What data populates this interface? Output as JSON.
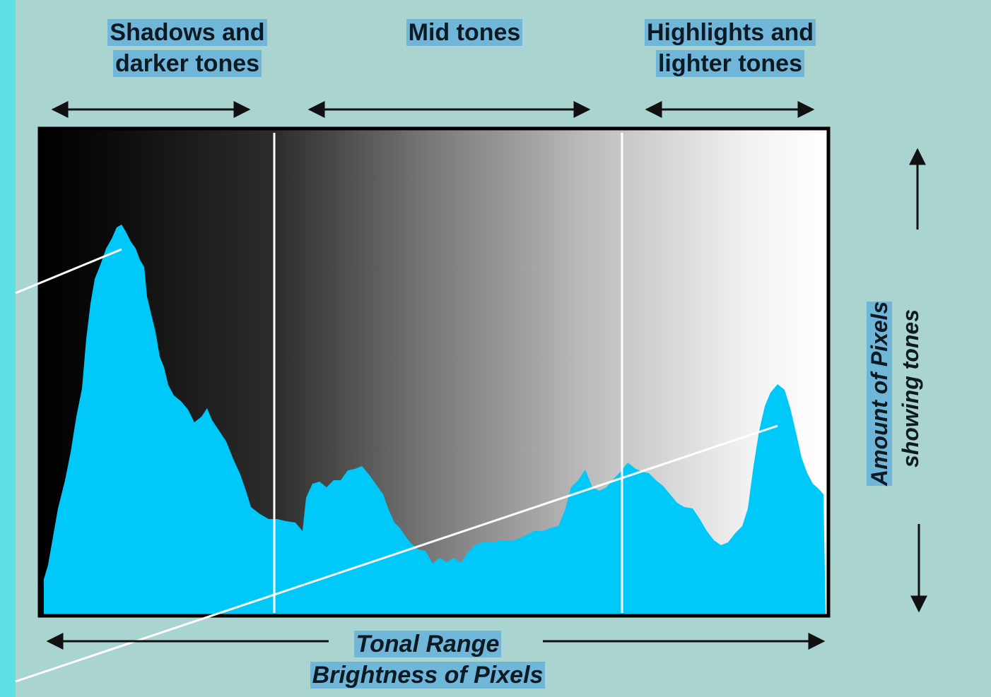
{
  "regions": {
    "shadows": {
      "line1": "Shadows and",
      "line2": "darker tones"
    },
    "midtones": {
      "line1": "Mid tones"
    },
    "highlights": {
      "line1": "Highlights and",
      "line2": "lighter tones"
    }
  },
  "x_axis": {
    "line1": "Tonal Range",
    "line2": "Brightness of Pixels"
  },
  "y_axis": {
    "line1": "Amount of Pixels",
    "line2": "showing tones"
  },
  "colors": {
    "background": "#a9d4d0",
    "edge": "#5fe0e4",
    "histogram_fill": "#00c8f8",
    "label_highlight": "#6fb6d8",
    "frame": "#000000",
    "divider": "#ffffff"
  }
}
